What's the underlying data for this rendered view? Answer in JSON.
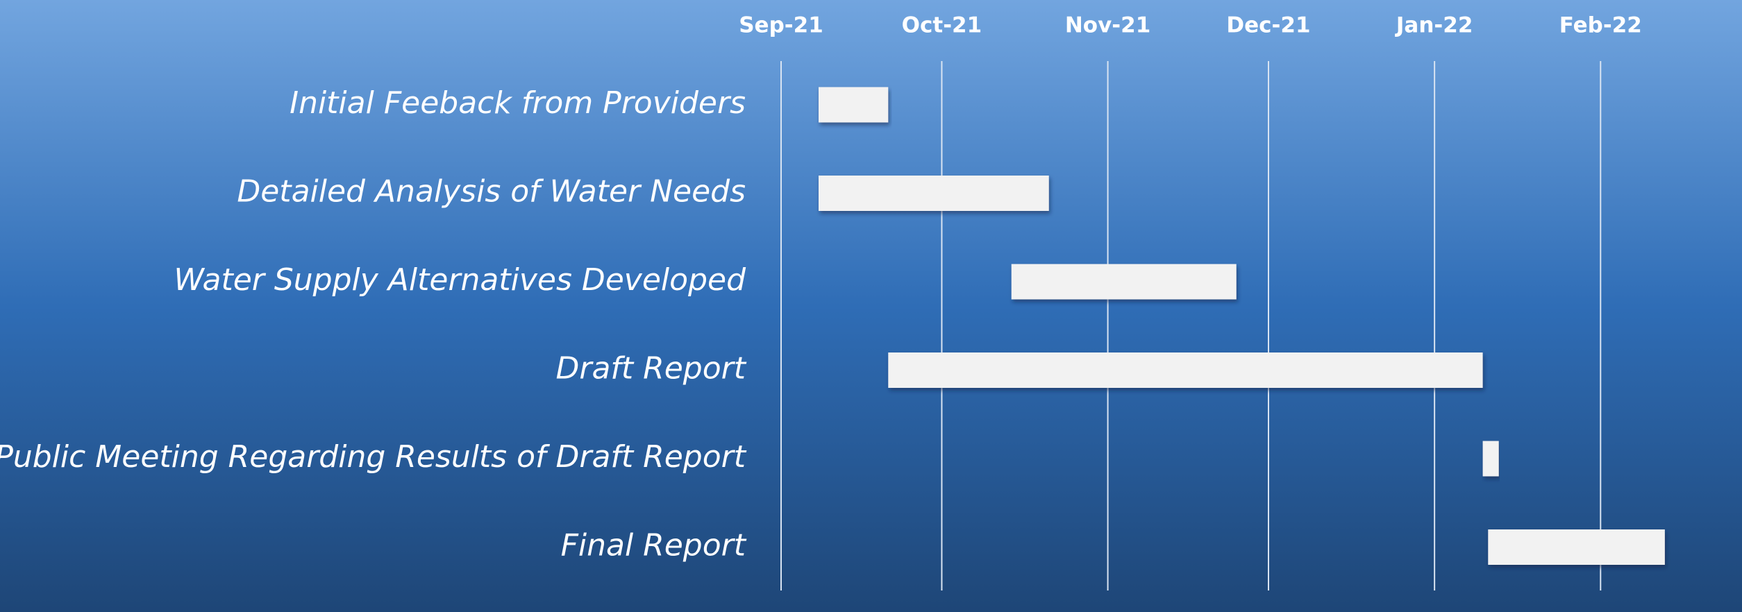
{
  "chart_data": {
    "type": "gantt",
    "categories": [
      "Initial Feeback from Providers",
      "Detailed Analysis of Water Needs",
      "Water Supply Alternatives Developed",
      "Draft Report",
      "Public Meeting Regarding Results of Draft Report",
      "Final Report"
    ],
    "start": [
      "2021-09-08",
      "2021-09-08",
      "2021-10-14",
      "2021-09-21",
      "2022-01-10",
      "2022-01-11"
    ],
    "end": [
      "2021-09-21",
      "2021-10-21",
      "2021-11-25",
      "2022-01-10",
      "2022-01-13",
      "2022-02-13"
    ],
    "color": "#f2f2f2",
    "xlim": [
      "2021-09-01",
      "2022-02-16"
    ],
    "xticks": [
      {
        "value": "2021-09-01",
        "label": "Sep-21"
      },
      {
        "value": "2021-10-01",
        "label": "Oct-21"
      },
      {
        "value": "2021-11-01",
        "label": "Nov-21"
      },
      {
        "value": "2021-12-01",
        "label": "Dec-21"
      },
      {
        "value": "2022-01-01",
        "label": "Jan-22"
      },
      {
        "value": "2022-02-01",
        "label": "Feb-22"
      }
    ],
    "grid": true
  }
}
